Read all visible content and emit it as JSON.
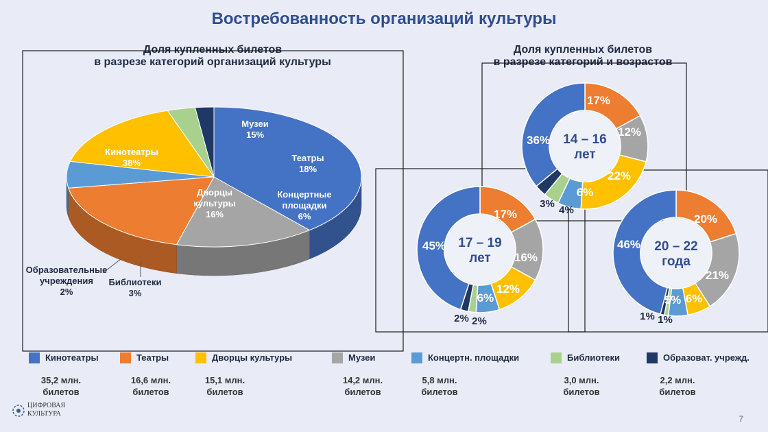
{
  "title": "Востребованность организаций культуры",
  "left_chart": {
    "subtitle_line1": "Доля купленных билетов",
    "subtitle_line2": "в разрезе категорий организаций культуры"
  },
  "right_chart": {
    "subtitle_line1": "Доля купленных билетов",
    "subtitle_line2": "в разрезе категорий и возрастов"
  },
  "colors": {
    "kino": "#4472c4",
    "teatr": "#ed7d31",
    "dvorcy": "#ffc000",
    "muzei": "#a5a5a5",
    "koncert": "#5b9bd5",
    "biblio": "#a9d18e",
    "obraz": "#203864"
  },
  "chart_data": [
    {
      "type": "pie",
      "title": "Доля купленных билетов в разрезе категорий организаций культуры",
      "slices": [
        {
          "key": "kino",
          "label": "Кинотеатры",
          "value": 38,
          "value_label": "38%"
        },
        {
          "key": "muzei",
          "label": "Музеи",
          "value": 15,
          "value_label": "15%"
        },
        {
          "key": "teatr",
          "label": "Театры",
          "value": 18,
          "value_label": "18%"
        },
        {
          "key": "koncert",
          "label": "Концертные площадки",
          "value": 6,
          "value_label": "6%"
        },
        {
          "key": "dvorcy",
          "label": "Дворцы культуры",
          "value": 16,
          "value_label": "16%"
        },
        {
          "key": "biblio",
          "label": "Библиотеки",
          "value": 3,
          "value_label": "3%"
        },
        {
          "key": "obraz",
          "label": "Образовательные учреждения",
          "value": 2,
          "value_label": "2%"
        }
      ]
    },
    {
      "type": "pie",
      "subtype": "donut",
      "title": "Доля купленных билетов в разрезе категорий и возрастов",
      "center_label": [
        "14 – 16",
        "лет"
      ],
      "slices": [
        {
          "key": "teatr",
          "value": 17,
          "value_label": "17%"
        },
        {
          "key": "muzei",
          "value": 12,
          "value_label": "12%"
        },
        {
          "key": "dvorcy",
          "value": 22,
          "value_label": "22%"
        },
        {
          "key": "koncert",
          "value": 6,
          "value_label": "6%"
        },
        {
          "key": "biblio",
          "value": 4,
          "value_label": "4%"
        },
        {
          "key": "obraz",
          "value": 3,
          "value_label": "3%"
        },
        {
          "key": "kino",
          "value": 36,
          "value_label": "36%"
        }
      ]
    },
    {
      "type": "pie",
      "subtype": "donut",
      "center_label": [
        "17 – 19",
        "лет"
      ],
      "slices": [
        {
          "key": "teatr",
          "value": 17,
          "value_label": "17%"
        },
        {
          "key": "muzei",
          "value": 16,
          "value_label": "16%"
        },
        {
          "key": "dvorcy",
          "value": 12,
          "value_label": "12%"
        },
        {
          "key": "koncert",
          "value": 6,
          "value_label": "6%"
        },
        {
          "key": "biblio",
          "value": 2,
          "value_label": "2%"
        },
        {
          "key": "obraz",
          "value": 2,
          "value_label": "2%"
        },
        {
          "key": "kino",
          "value": 45,
          "value_label": "45%"
        }
      ]
    },
    {
      "type": "pie",
      "subtype": "donut",
      "center_label": [
        "20 – 22",
        "года"
      ],
      "slices": [
        {
          "key": "teatr",
          "value": 20,
          "value_label": "20%"
        },
        {
          "key": "muzei",
          "value": 21,
          "value_label": "21%"
        },
        {
          "key": "dvorcy",
          "value": 6,
          "value_label": "6%"
        },
        {
          "key": "koncert",
          "value": 5,
          "value_label": "5%"
        },
        {
          "key": "biblio",
          "value": 1,
          "value_label": "1%"
        },
        {
          "key": "obraz",
          "value": 1,
          "value_label": "1%"
        },
        {
          "key": "kino",
          "value": 46,
          "value_label": "46%"
        }
      ]
    }
  ],
  "legend": [
    {
      "key": "kino",
      "label": "Кинотеатры",
      "count_line1": "35,2 млн.",
      "count_line2": "билетов"
    },
    {
      "key": "teatr",
      "label": "Театры",
      "count_line1": "16,6 млн.",
      "count_line2": "билетов"
    },
    {
      "key": "dvorcy",
      "label": "Дворцы культуры",
      "count_line1": "15,1 млн.",
      "count_line2": "билетов"
    },
    {
      "key": "muzei",
      "label": "Музеи",
      "count_line1": "14,2 млн.",
      "count_line2": "билетов"
    },
    {
      "key": "koncert",
      "label": "Концертн. площадки",
      "count_line1": "5,8 млн.",
      "count_line2": "билетов"
    },
    {
      "key": "biblio",
      "label": "Библиотеки",
      "count_line1": "3,0 млн.",
      "count_line2": "билетов"
    },
    {
      "key": "obraz",
      "label": "Образоват. учрежд.",
      "count_line1": "2,2 млн.",
      "count_line2": "билетов"
    }
  ],
  "logo": {
    "line1": "ЦИФРОВАЯ",
    "line2": "КУЛЬТУРА"
  },
  "page_number": "7"
}
